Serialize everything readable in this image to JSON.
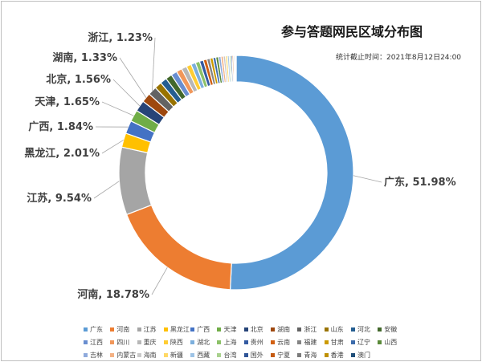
{
  "chart_data": {
    "type": "pie",
    "donut": true,
    "title": "参与答题网民区域分布图",
    "subtitle": "统计截止时间：2021年8月12日24:00",
    "legend_position": "bottom",
    "slices": [
      {
        "label": "广东",
        "value": 51.98,
        "color": "#5b9bd5",
        "display": "广东, 51.98%"
      },
      {
        "label": "河南",
        "value": 18.78,
        "color": "#ed7d31",
        "display": "河南, 18.78%"
      },
      {
        "label": "江苏",
        "value": 9.54,
        "color": "#a5a5a5",
        "display": "江苏, 9.54%"
      },
      {
        "label": "黑龙江",
        "value": 2.01,
        "color": "#ffc000",
        "display": "黑龙江, 2.01%"
      },
      {
        "label": "广西",
        "value": 1.84,
        "color": "#4472c4",
        "display": "广西, 1.84%"
      },
      {
        "label": "天津",
        "value": 1.65,
        "color": "#70ad47",
        "display": "天津, 1.65%"
      },
      {
        "label": "北京",
        "value": 1.56,
        "color": "#264478",
        "display": "北京, 1.56%"
      },
      {
        "label": "湖南",
        "value": 1.33,
        "color": "#9e480e",
        "display": "湖南, 1.33%"
      },
      {
        "label": "浙江",
        "value": 1.23,
        "color": "#636363",
        "display": "浙江, 1.23%"
      },
      {
        "label": "山东",
        "value": 1.0,
        "color": "#997300"
      },
      {
        "label": "河北",
        "value": 0.95,
        "color": "#255e91"
      },
      {
        "label": "安徽",
        "value": 0.9,
        "color": "#43682b"
      },
      {
        "label": "江西",
        "value": 0.85,
        "color": "#698ed0"
      },
      {
        "label": "四川",
        "value": 0.8,
        "color": "#f1975a"
      },
      {
        "label": "重庆",
        "value": 0.75,
        "color": "#b7b7b7"
      },
      {
        "label": "陕西",
        "value": 0.7,
        "color": "#ffcd33"
      },
      {
        "label": "湖北",
        "value": 0.65,
        "color": "#7cafdd"
      },
      {
        "label": "上海",
        "value": 0.6,
        "color": "#8cc168"
      },
      {
        "label": "贵州",
        "value": 0.55,
        "color": "#335aa1"
      },
      {
        "label": "云南",
        "value": 0.5,
        "color": "#d26012"
      },
      {
        "label": "福建",
        "value": 0.45,
        "color": "#848484"
      },
      {
        "label": "甘肃",
        "value": 0.42,
        "color": "#cc9a00"
      },
      {
        "label": "辽宁",
        "value": 0.4,
        "color": "#3c6bab"
      },
      {
        "label": "山西",
        "value": 0.38,
        "color": "#5a8a39"
      },
      {
        "label": "吉林",
        "value": 0.35,
        "color": "#8faadc"
      },
      {
        "label": "内蒙古",
        "value": 0.33,
        "color": "#f4b183"
      },
      {
        "label": "海南",
        "value": 0.3,
        "color": "#c9c9c9"
      },
      {
        "label": "新疆",
        "value": 0.28,
        "color": "#ffd966"
      },
      {
        "label": "西藏",
        "value": 0.25,
        "color": "#9dc3e6"
      },
      {
        "label": "台湾",
        "value": 0.22,
        "color": "#a9d18e"
      },
      {
        "label": "国外",
        "value": 0.2,
        "color": "#2f5597"
      },
      {
        "label": "宁夏",
        "value": 0.18,
        "color": "#c55a11"
      },
      {
        "label": "青海",
        "value": 0.15,
        "color": "#7b7b7b"
      },
      {
        "label": "香港",
        "value": 0.12,
        "color": "#bf9000"
      },
      {
        "label": "澳门",
        "value": 0.1,
        "color": "#1f4e79"
      }
    ]
  }
}
